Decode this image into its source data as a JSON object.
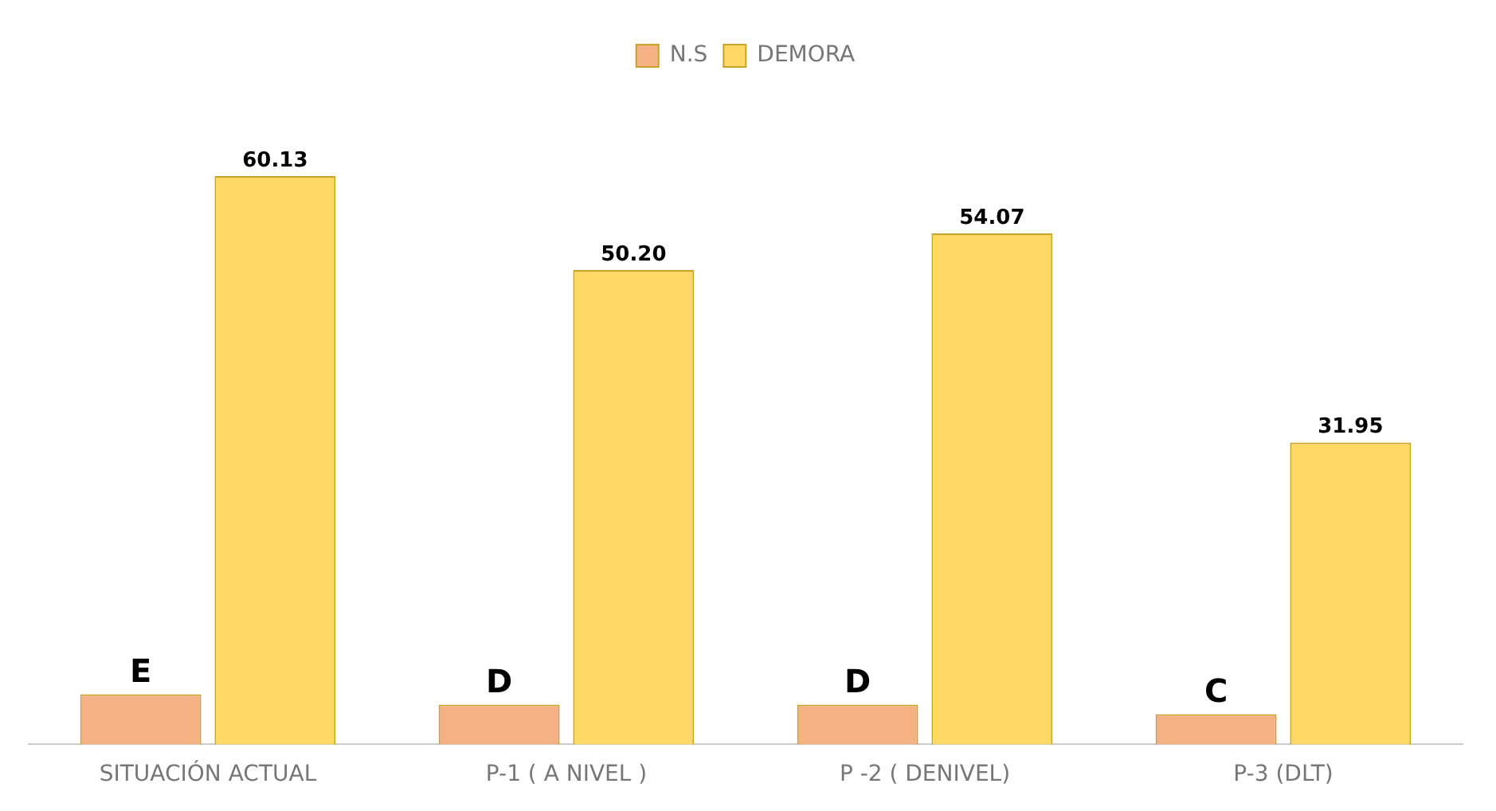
{
  "chart_data": {
    "type": "bar",
    "categories": [
      "SITUACIÓN ACTUAL",
      "P-1 ( A NIVEL )",
      "P -2 ( DENIVEL)",
      "P-3 (DLT)"
    ],
    "series": [
      {
        "name": "N.S",
        "color": "#f4b183",
        "values": [
          5.3,
          4.2,
          4.2,
          3.2
        ],
        "value_labels": [
          "E",
          "D",
          "D",
          "C"
        ]
      },
      {
        "name": "DEMORA",
        "color": "#ffd966",
        "values": [
          60.13,
          50.2,
          54.07,
          31.95
        ],
        "value_labels": [
          "60.13",
          "50.20",
          "54.07",
          "31.95"
        ]
      }
    ],
    "legend": "top",
    "grid": false
  }
}
